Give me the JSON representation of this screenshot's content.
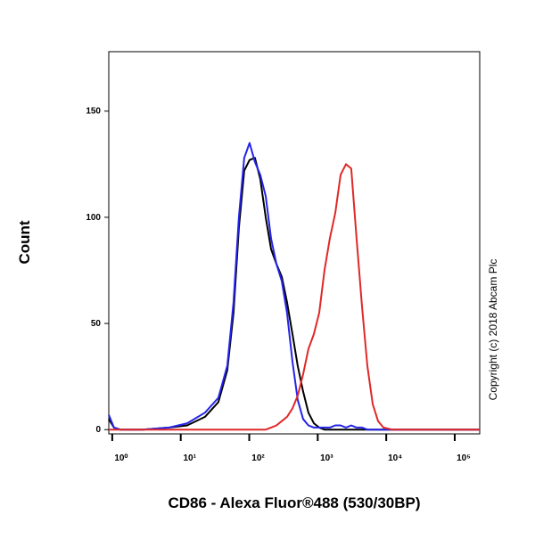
{
  "chart_data": {
    "type": "line",
    "x_label": "CD86 - Alexa Fluor®488 (530/30BP)",
    "y_label": "Count",
    "annotation": "Copyright (c) 2018 Abcam Plc",
    "x_scale": "log",
    "xlim": [
      0.89,
      231600
    ],
    "xticks": [
      {
        "value": 1,
        "label": "10⁰"
      },
      {
        "value": 10,
        "label": "10¹"
      },
      {
        "value": 100,
        "label": "10²"
      },
      {
        "value": 1000,
        "label": "10³"
      },
      {
        "value": 10000,
        "label": "10⁴"
      },
      {
        "value": 100000,
        "label": "10⁵"
      }
    ],
    "ylim": [
      -2,
      178
    ],
    "yticks": [
      0,
      50,
      100,
      150
    ],
    "grid": false,
    "x": [
      0.89,
      1.06,
      1.31,
      2.77,
      6.81,
      12.4,
      22.6,
      35.4,
      47.8,
      59.0,
      70.6,
      84.5,
      101,
      121,
      145,
      174,
      208,
      249,
      298,
      356,
      427,
      511,
      611,
      732,
      877,
      1050,
      1256,
      1503,
      1800,
      2155,
      2579,
      3087,
      3695,
      4424,
      5296,
      6339,
      7588,
      9083,
      12270,
      22340,
      74130,
      231600
    ],
    "series": [
      {
        "name": "Black",
        "color": "#000000",
        "values": [
          5,
          1,
          0,
          0,
          1,
          2,
          6,
          13,
          28,
          55,
          95,
          122,
          127,
          128,
          118,
          100,
          85,
          78,
          72,
          60,
          45,
          30,
          18,
          8,
          3,
          1,
          0,
          0,
          0,
          0,
          0,
          0,
          0,
          0,
          0,
          0,
          0,
          0,
          0,
          0,
          0,
          0
        ]
      },
      {
        "name": "Blue",
        "color": "#2424e8",
        "values": [
          7,
          1,
          0,
          0,
          1,
          3,
          8,
          15,
          30,
          60,
          100,
          128,
          135,
          126,
          120,
          110,
          90,
          78,
          70,
          55,
          32,
          14,
          5,
          2,
          1,
          1,
          1,
          1,
          2,
          2,
          1,
          2,
          1,
          1,
          0,
          0,
          0,
          0,
          0,
          0,
          0,
          0
        ]
      },
      {
        "name": "Red",
        "color": "#e02828",
        "values": [
          0,
          0,
          0,
          0,
          0,
          0,
          0,
          0,
          0,
          0,
          0,
          0,
          0,
          0,
          0,
          0,
          1,
          2,
          4,
          6,
          10,
          16,
          26,
          38,
          45,
          55,
          75,
          90,
          102,
          120,
          125,
          123,
          90,
          58,
          30,
          12,
          4,
          1,
          0,
          0,
          0,
          0
        ]
      }
    ]
  }
}
